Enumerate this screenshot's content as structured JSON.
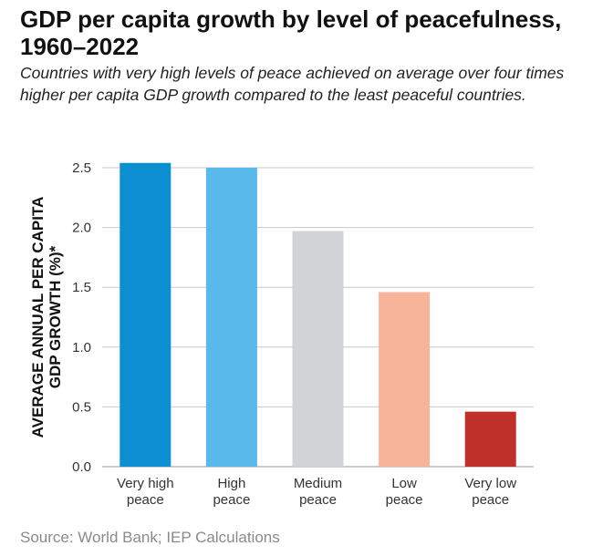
{
  "chart_data": {
    "type": "bar",
    "title": "GDP per capita growth by level of peacefulness, 1960–2022",
    "subtitle": "Countries with very high levels of peace achieved on average over four times higher per capita GDP growth compared to the least peaceful countries.",
    "ylabel": [
      "AVERAGE ANNUAL PER CAPITA",
      "GDP GROWTH (%)*"
    ],
    "xlabel": "",
    "ylim": [
      0,
      2.5
    ],
    "yticks": [
      "0.0",
      "0.5",
      "1.0",
      "1.5",
      "2.0",
      "2.5"
    ],
    "grid": true,
    "categories": [
      [
        "Very high",
        "peace"
      ],
      [
        "High",
        "peace"
      ],
      [
        "Medium",
        "peace"
      ],
      [
        "Low",
        "peace"
      ],
      [
        "Very low",
        "peace"
      ]
    ],
    "values": [
      2.54,
      2.5,
      1.97,
      1.46,
      0.46
    ],
    "colors": [
      "#0b8fd0",
      "#58b9ea",
      "#d1d3d6",
      "#f8b39b",
      "#c0302a"
    ]
  },
  "source": "Source: World Bank; IEP Calculations"
}
